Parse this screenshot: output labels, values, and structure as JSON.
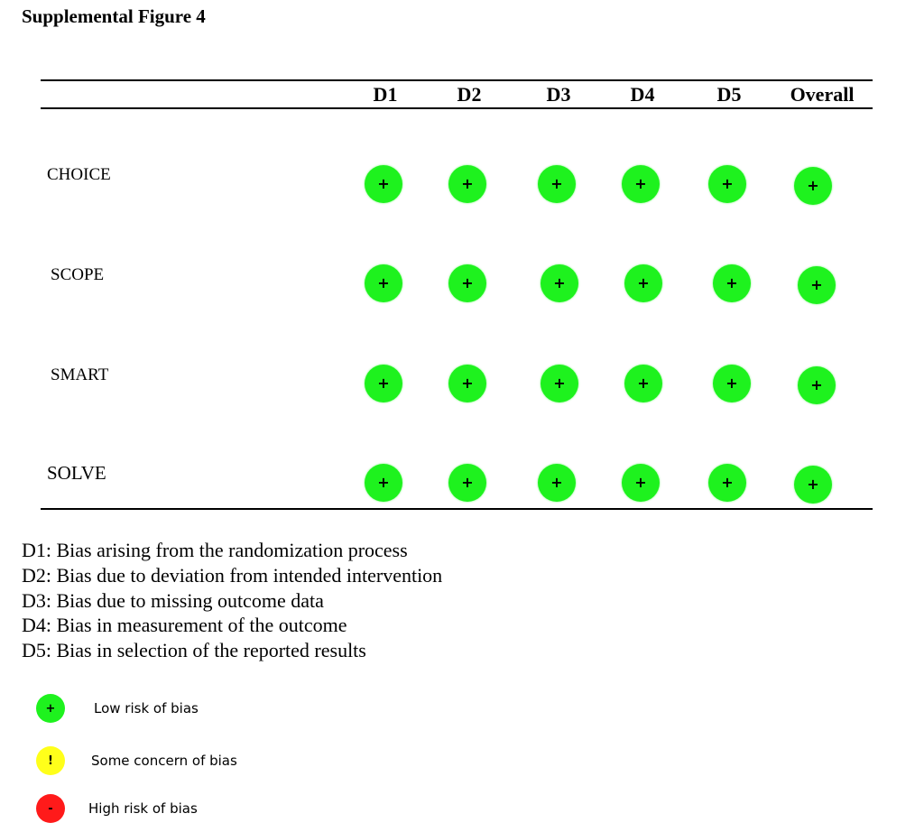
{
  "title": "Supplemental Figure 4",
  "columns": [
    "D1",
    "D2",
    "D3",
    "D4",
    "D5",
    "Overall"
  ],
  "rows": [
    {
      "label": "CHOICE",
      "judgements": [
        "+",
        "+",
        "+",
        "+",
        "+",
        "+"
      ]
    },
    {
      "label": "SCOPE",
      "judgements": [
        "+",
        "+",
        "+",
        "+",
        "+",
        "+"
      ]
    },
    {
      "label": "SMART",
      "judgements": [
        "+",
        "+",
        "+",
        "+",
        "+",
        "+"
      ]
    },
    {
      "label": "SOLVE",
      "judgements": [
        "+",
        "+",
        "+",
        "+",
        "+",
        "+"
      ]
    }
  ],
  "domain_definitions": [
    "D1: Bias arising from the randomization process",
    "D2: Bias due to deviation from intended intervention",
    "D3: Bias due to missing outcome data",
    "D4: Bias in measurement of the outcome",
    "D5: Bias in selection of the reported results"
  ],
  "legend": [
    {
      "symbol": "+",
      "label": "Low risk of bias",
      "color": "#1ef21e"
    },
    {
      "symbol": "!",
      "label": "Some concern of bias",
      "color": "#ffff1a"
    },
    {
      "symbol": "-",
      "label": "High risk of bias",
      "color": "#ff1a1a"
    }
  ],
  "colors": {
    "low": "#1ef21e",
    "some": "#ffff1a",
    "high": "#ff1a1a"
  }
}
